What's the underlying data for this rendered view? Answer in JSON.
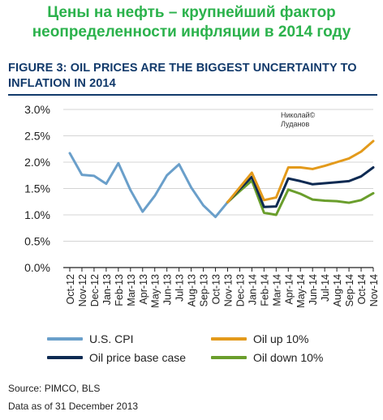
{
  "banner": {
    "line1": "Цены на нефть – крупнейший фактор",
    "line2": "неопределенности инфляции в 2014 году"
  },
  "figure": {
    "title_line1": "FIGURE 3: OIL PRICES ARE THE BIGGEST UNCERTAINTY TO",
    "title_line2": "INFLATION IN 2014"
  },
  "watermark": {
    "line1": "Николай©",
    "line2": "Луданов"
  },
  "source": {
    "line1": "Source: PIMCO, BLS",
    "line2": "Data as of 31 December 2013"
  },
  "colors": {
    "cpi": "#6a9fca",
    "base": "#0d2a52",
    "up": "#e39a1b",
    "down": "#6a9e2c",
    "grid": "#d4d4d4",
    "axis": "#222222"
  },
  "chart_data": {
    "type": "line",
    "x": [
      "Oct-12",
      "Nov-12",
      "Dec-12",
      "Jan-13",
      "Feb-13",
      "Mar-13",
      "Apr-13",
      "May-13",
      "Jun-13",
      "Jul-13",
      "Aug-13",
      "Sep-13",
      "Oct-13",
      "Nov-13",
      "Dec-13",
      "Jan-14",
      "Feb-14",
      "Mar-14",
      "Apr-14",
      "May-14",
      "Jun-14",
      "Jul-14",
      "Aug-14",
      "Sep-14",
      "Oct-14",
      "Nov-14"
    ],
    "ylim": [
      0,
      3.0
    ],
    "yticks": [
      0,
      0.5,
      1.0,
      1.5,
      2.0,
      2.5,
      3.0
    ],
    "ytick_labels": [
      "0.0%",
      "0.5%",
      "1.0%",
      "1.5%",
      "2.0%",
      "2.5%",
      "3.0%"
    ],
    "grid": true,
    "legend_position": "bottom",
    "series": [
      {
        "name": "U.S. CPI",
        "color_key": "cpi",
        "values": [
          2.17,
          1.76,
          1.74,
          1.59,
          1.98,
          1.47,
          1.06,
          1.36,
          1.75,
          1.96,
          1.52,
          1.18,
          0.96,
          1.24,
          null,
          null,
          null,
          null,
          null,
          null,
          null,
          null,
          null,
          null,
          null,
          null
        ]
      },
      {
        "name": "Oil up 10%",
        "color_key": "up",
        "values": [
          null,
          null,
          null,
          null,
          null,
          null,
          null,
          null,
          null,
          null,
          null,
          null,
          null,
          1.24,
          1.52,
          1.8,
          1.28,
          1.33,
          1.9,
          1.9,
          1.87,
          1.93,
          2.0,
          2.07,
          2.2,
          2.4
        ]
      },
      {
        "name": "Oil price base case",
        "color_key": "base",
        "values": [
          null,
          null,
          null,
          null,
          null,
          null,
          null,
          null,
          null,
          null,
          null,
          null,
          null,
          1.24,
          1.49,
          1.72,
          1.15,
          1.16,
          1.69,
          1.64,
          1.58,
          1.6,
          1.62,
          1.64,
          1.73,
          1.9
        ]
      },
      {
        "name": "Oil down 10%",
        "color_key": "down",
        "values": [
          null,
          null,
          null,
          null,
          null,
          null,
          null,
          null,
          null,
          null,
          null,
          null,
          null,
          1.24,
          1.45,
          1.65,
          1.04,
          1.0,
          1.48,
          1.4,
          1.29,
          1.27,
          1.26,
          1.23,
          1.28,
          1.41
        ]
      }
    ]
  }
}
